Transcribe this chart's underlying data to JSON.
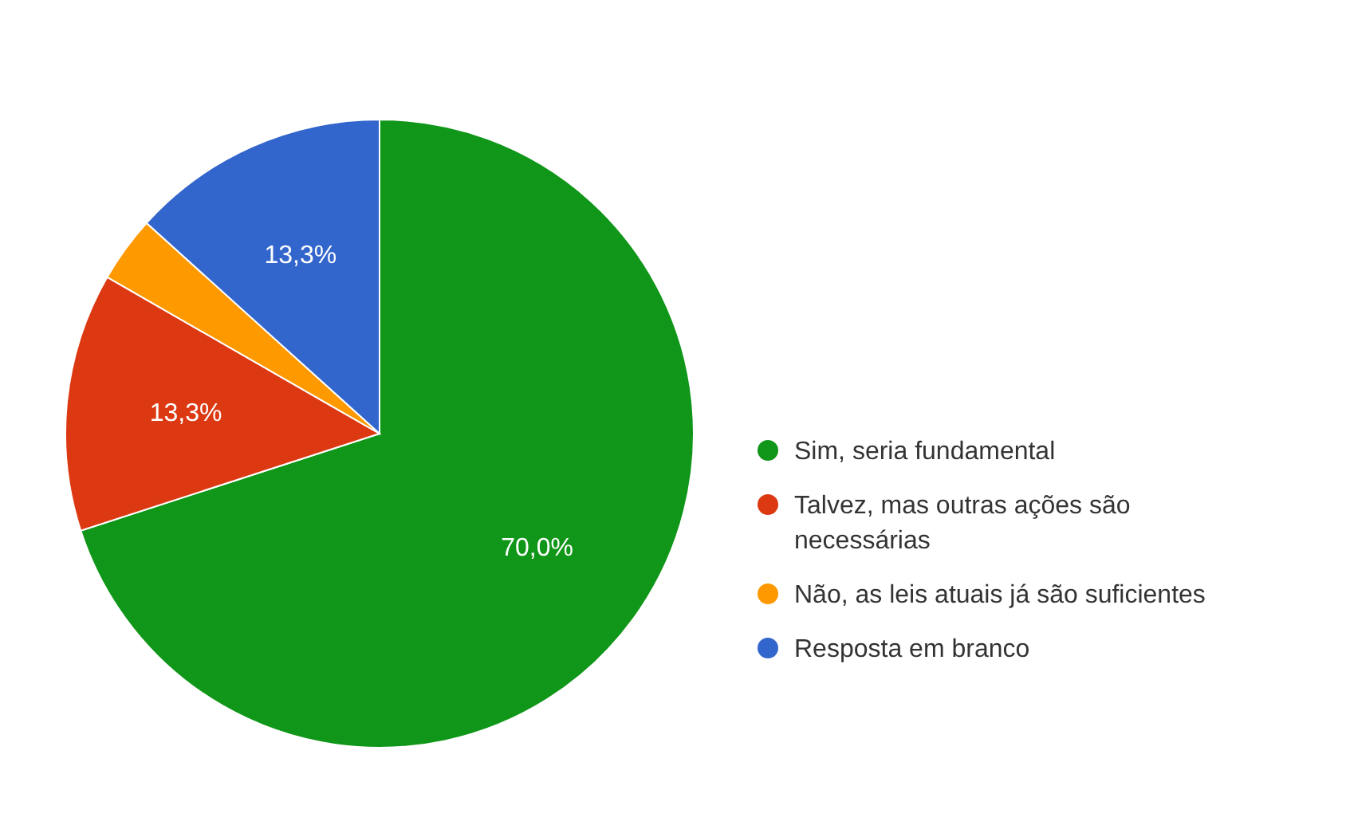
{
  "chart_data": {
    "type": "pie",
    "categories": [
      "Sim, seria fundamental",
      "Talvez, mas outras ações são necessárias",
      "Não, as leis atuais já são suficientes",
      "Resposta em branco"
    ],
    "values": [
      70,
      13.3,
      3.4,
      13.3
    ],
    "colors": [
      "#109618",
      "#dc3912",
      "#ff9900",
      "#3366cc"
    ],
    "value_labels": [
      "70,0%",
      "13,3%",
      null,
      "13,3%"
    ],
    "legend": "right"
  }
}
